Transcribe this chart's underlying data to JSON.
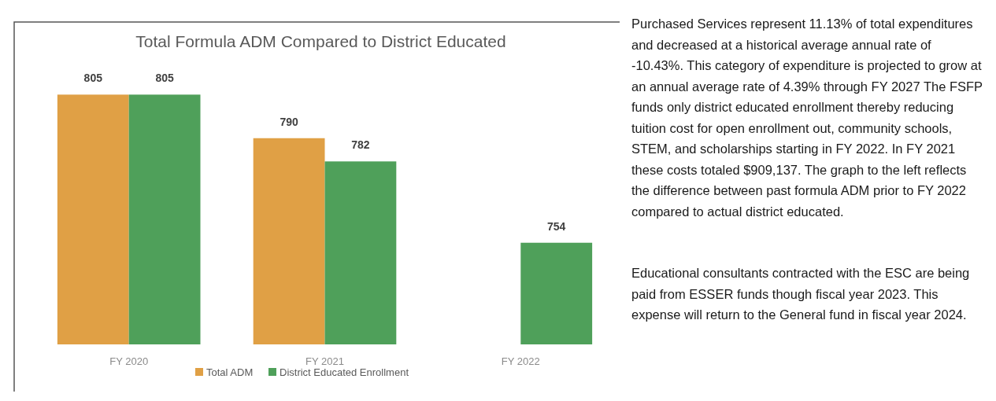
{
  "chart_data": {
    "type": "bar",
    "title": "Total Formula ADM Compared to District Educated",
    "categories": [
      "FY 2020",
      "FY 2021",
      "FY 2022"
    ],
    "series": [
      {
        "name": "Total ADM",
        "color": "#e0a045",
        "values": [
          805,
          790,
          null
        ]
      },
      {
        "name": "District Educated Enrollment",
        "color": "#4fa05a",
        "values": [
          805,
          782,
          754
        ]
      }
    ],
    "ylim": [
      719,
      830
    ],
    "data_labels": true,
    "legend": "bottom",
    "tick_labels": "x",
    "annotations": [
      "Purchased Services represent 11.13% of total expenditures and  decreased at a historical average annual rate of -10.43%.  This category of expenditure is projected to grow at an annual average rate of 4.39% through FY 2027 The FSFP funds only district educated enrollment thereby reducing tuition cost for open enrollment out, community schools, STEM, and scholarships starting in FY 2022.   In FY 2021 these costs totaled $909,137.  The graph to the left reflects the difference between past formula ADM prior to FY 2022 compared to actual district educated.",
      "Educational consultants contracted with the ESC are being paid from ESSER funds though fiscal year 2023.  This expense will return to the General fund in fiscal year 2024."
    ]
  }
}
